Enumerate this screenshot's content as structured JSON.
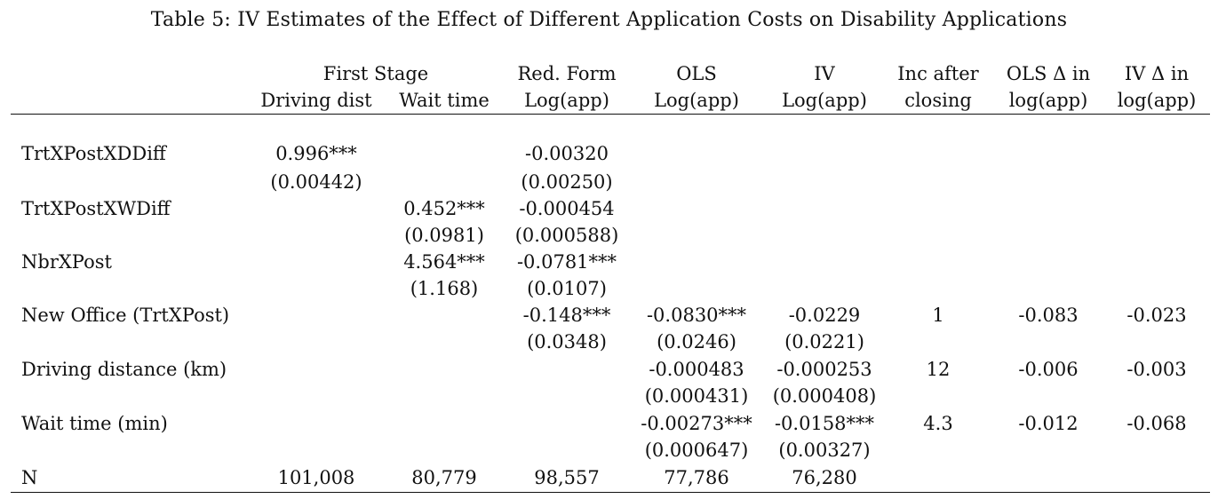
{
  "caption": "Table 5: IV Estimates of the Effect of Different Application Costs on Disability Applications",
  "header": {
    "first_stage": "First Stage",
    "col1_line2": "Driving dist",
    "col2_line2": "Wait time",
    "col3_line1": "Red. Form",
    "col3_line2": "Log(app)",
    "col4_line1": "OLS",
    "col4_line2": "Log(app)",
    "col5_line1": "IV",
    "col5_line2": "Log(app)",
    "col6_line1": "Inc after",
    "col6_line2": "closing",
    "col7_line1": "OLS Δ in",
    "col7_line2": "log(app)",
    "col8_line1": "IV Δ in",
    "col8_line2": "log(app)"
  },
  "rows": {
    "trt_dd": {
      "label": "TrtXPostXDDiff",
      "c1": "0.996***",
      "c1_se": "(0.00442)",
      "c3": "-0.00320",
      "c3_se": "(0.00250)"
    },
    "trt_wd": {
      "label": "TrtXPostXWDiff",
      "c2": "0.452***",
      "c2_se": "(0.0981)",
      "c3": "-0.000454",
      "c3_se": "(0.000588)"
    },
    "nbr": {
      "label": "NbrXPost",
      "c2": "4.564***",
      "c2_se": "(1.168)",
      "c3": "-0.0781***",
      "c3_se": "(0.0107)"
    },
    "new_office": {
      "label": "New Office (TrtXPost)",
      "c3": "-0.148***",
      "c3_se": "(0.0348)",
      "c4": "-0.0830***",
      "c4_se": "(0.0246)",
      "c5": "-0.0229",
      "c5_se": "(0.0221)",
      "c6": "1",
      "c7": "-0.083",
      "c8": "-0.023"
    },
    "driving": {
      "label": "Driving distance (km)",
      "c4": "-0.000483",
      "c4_se": "(0.000431)",
      "c5": "-0.000253",
      "c5_se": "(0.000408)",
      "c6": "12",
      "c7": "-0.006",
      "c8": "-0.003"
    },
    "wait": {
      "label": "Wait time (min)",
      "c4": "-0.00273***",
      "c4_se": "(0.000647)",
      "c5": "-0.0158***",
      "c5_se": "(0.00327)",
      "c6": "4.3",
      "c7": "-0.012",
      "c8": "-0.068"
    },
    "n": {
      "label": "N",
      "c1": "101,008",
      "c2": "80,779",
      "c3": "98,557",
      "c4": "77,786",
      "c5": "76,280"
    }
  }
}
